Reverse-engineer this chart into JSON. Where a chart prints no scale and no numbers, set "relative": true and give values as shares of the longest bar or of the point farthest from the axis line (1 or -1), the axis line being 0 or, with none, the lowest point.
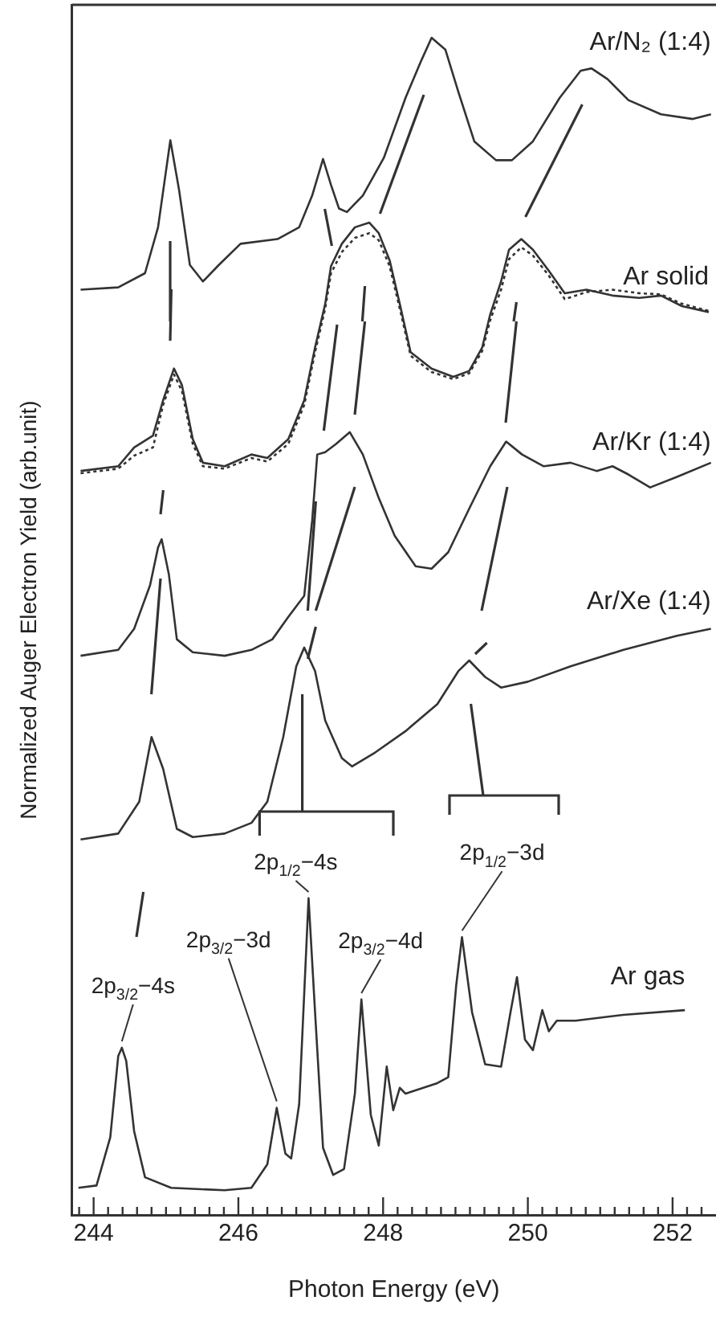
{
  "chart_data": {
    "type": "line",
    "relative": true,
    "xlabel": "Photon Energy (eV)",
    "ylabel": "Normalized Auger Electron Yield (arb.unit)",
    "xlim": [
      243.7,
      252.6
    ],
    "xticks": [
      {
        "value": 243.8,
        "label": null
      },
      244,
      {
        "value": 244.2,
        "label": null
      },
      {
        "value": 244.4,
        "label": null
      },
      {
        "value": 244.6,
        "label": null
      },
      {
        "value": 244.8,
        "label": null
      },
      {
        "value": 245,
        "label": null
      },
      {
        "value": 245.2,
        "label": null
      },
      {
        "value": 245.4,
        "label": null
      },
      {
        "value": 245.6,
        "label": null
      },
      {
        "value": 245.8,
        "label": null
      },
      246,
      {
        "value": 246.2,
        "label": null
      },
      {
        "value": 246.4,
        "label": null
      },
      {
        "value": 246.6,
        "label": null
      },
      {
        "value": 246.8,
        "label": null
      },
      {
        "value": 247,
        "label": null
      },
      {
        "value": 247.2,
        "label": null
      },
      {
        "value": 247.4,
        "label": null
      },
      {
        "value": 247.6,
        "label": null
      },
      {
        "value": 247.8,
        "label": null
      },
      248,
      {
        "value": 248.2,
        "label": null
      },
      {
        "value": 248.4,
        "label": null
      },
      {
        "value": 248.6,
        "label": null
      },
      {
        "value": 248.8,
        "label": null
      },
      {
        "value": 249,
        "label": null
      },
      {
        "value": 249.2,
        "label": null
      },
      {
        "value": 249.4,
        "label": null
      },
      {
        "value": 249.6,
        "label": null
      },
      {
        "value": 249.8,
        "label": null
      },
      250,
      {
        "value": 250.2,
        "label": null
      },
      {
        "value": 250.4,
        "label": null
      },
      {
        "value": 250.6,
        "label": null
      },
      {
        "value": 250.8,
        "label": null
      },
      {
        "value": 251,
        "label": null
      },
      {
        "value": 251.2,
        "label": null
      },
      {
        "value": 251.4,
        "label": null
      },
      {
        "value": 251.6,
        "label": null
      },
      {
        "value": 251.8,
        "label": null
      },
      252,
      {
        "value": 252.2,
        "label": null
      },
      {
        "value": 252.4,
        "label": null
      }
    ],
    "grid": false,
    "legend": false,
    "marker": "none",
    "line_style": "solid",
    "series": [
      {
        "name": "Ar/N₂ (1:4)",
        "color": "#333333",
        "x": [
          243.82,
          244.34,
          244.71,
          244.89,
          245.06,
          245.18,
          245.33,
          245.51,
          245.73,
          246.03,
          246.54,
          246.84,
          247.02,
          247.17,
          247.28,
          247.39,
          247.5,
          247.72,
          248.01,
          248.31,
          248.53,
          248.67,
          248.86,
          249.04,
          249.26,
          249.56,
          249.78,
          250.07,
          250.44,
          250.73,
          250.88,
          251.1,
          251.39,
          251.84,
          252.28,
          252.53
        ],
        "values": [
          0.786,
          0.788,
          0.8,
          0.839,
          0.913,
          0.871,
          0.807,
          0.793,
          0.807,
          0.825,
          0.829,
          0.839,
          0.866,
          0.897,
          0.875,
          0.855,
          0.852,
          0.866,
          0.898,
          0.949,
          0.981,
          1,
          0.99,
          0.954,
          0.912,
          0.896,
          0.896,
          0.912,
          0.949,
          0.972,
          0.974,
          0.965,
          0.947,
          0.935,
          0.931,
          0.935
        ]
      },
      {
        "name": "Ar solid",
        "color": "#333333",
        "x": [
          243.82,
          244.34,
          244.56,
          244.82,
          244.96,
          245.11,
          245.22,
          245.37,
          245.51,
          245.81,
          246.18,
          246.4,
          246.69,
          246.91,
          247.06,
          247.2,
          247.28,
          247.43,
          247.61,
          247.81,
          247.94,
          248.09,
          248.23,
          248.38,
          248.67,
          248.97,
          249.19,
          249.37,
          249.48,
          249.63,
          249.74,
          249.91,
          250.07,
          250.29,
          250.51,
          250.81,
          251.17,
          251.54,
          251.84,
          252.13,
          252.5
        ],
        "values": [
          0.632,
          0.636,
          0.652,
          0.662,
          0.692,
          0.719,
          0.705,
          0.659,
          0.639,
          0.636,
          0.646,
          0.643,
          0.659,
          0.692,
          0.737,
          0.774,
          0.806,
          0.825,
          0.839,
          0.843,
          0.834,
          0.811,
          0.774,
          0.733,
          0.719,
          0.712,
          0.717,
          0.737,
          0.765,
          0.793,
          0.82,
          0.829,
          0.82,
          0.802,
          0.783,
          0.786,
          0.781,
          0.779,
          0.781,
          0.772,
          0.767
        ]
      },
      {
        "color": "#333333",
        "line_style": "dotted",
        "x": [
          243.82,
          244.34,
          244.56,
          244.82,
          244.96,
          245.11,
          245.22,
          245.37,
          245.51,
          245.81,
          246.18,
          246.4,
          246.69,
          246.91,
          247.06,
          247.2,
          247.28,
          247.43,
          247.61,
          247.81,
          247.94,
          248.09,
          248.23,
          248.38,
          248.67,
          248.97,
          249.19,
          249.37,
          249.48,
          249.63,
          249.74,
          249.91,
          250.07,
          250.29,
          250.51,
          250.81,
          251.17,
          251.54,
          251.84,
          252.13,
          252.5
        ],
        "values": [
          0.63,
          0.634,
          0.645,
          0.652,
          0.688,
          0.714,
          0.7,
          0.655,
          0.636,
          0.634,
          0.643,
          0.64,
          0.655,
          0.688,
          0.733,
          0.77,
          0.8,
          0.818,
          0.83,
          0.834,
          0.828,
          0.806,
          0.77,
          0.73,
          0.716,
          0.71,
          0.715,
          0.734,
          0.76,
          0.786,
          0.812,
          0.822,
          0.815,
          0.798,
          0.778,
          0.784,
          0.786,
          0.783,
          0.782,
          0.774,
          0.768
        ]
      },
      {
        "name": "Ar/Kr (1:4)",
        "color": "#333333",
        "x": [
          243.82,
          244.34,
          244.56,
          244.78,
          244.89,
          244.94,
          245.04,
          245.15,
          245.37,
          245.81,
          246.18,
          246.47,
          246.69,
          246.91,
          247.02,
          247.09,
          247.2,
          247.35,
          247.54,
          247.72,
          247.94,
          248.16,
          248.45,
          248.67,
          248.9,
          249.19,
          249.48,
          249.7,
          249.92,
          250.22,
          250.59,
          250.95,
          251.17,
          251.39,
          251.69,
          252.06,
          252.53
        ],
        "values": [
          0.475,
          0.48,
          0.498,
          0.535,
          0.567,
          0.574,
          0.544,
          0.489,
          0.478,
          0.475,
          0.48,
          0.489,
          0.508,
          0.526,
          0.59,
          0.646,
          0.648,
          0.655,
          0.665,
          0.646,
          0.609,
          0.577,
          0.551,
          0.549,
          0.563,
          0.6,
          0.636,
          0.657,
          0.646,
          0.636,
          0.639,
          0.632,
          0.636,
          0.629,
          0.618,
          0.627,
          0.639
        ]
      },
      {
        "name": "Ar/Xe (1:4)",
        "color": "#333333",
        "x": [
          243.82,
          244.34,
          244.63,
          244.8,
          244.96,
          245.15,
          245.37,
          245.81,
          246.18,
          246.4,
          246.62,
          246.8,
          246.91,
          247.06,
          247.2,
          247.43,
          247.57,
          247.87,
          248.31,
          248.75,
          249.04,
          249.19,
          249.41,
          249.63,
          250,
          250.59,
          251.32,
          252.06,
          252.53
        ],
        "values": [
          0.319,
          0.324,
          0.351,
          0.406,
          0.379,
          0.328,
          0.321,
          0.324,
          0.333,
          0.351,
          0.406,
          0.466,
          0.482,
          0.462,
          0.42,
          0.388,
          0.381,
          0.392,
          0.411,
          0.434,
          0.462,
          0.471,
          0.457,
          0.448,
          0.453,
          0.466,
          0.48,
          0.492,
          0.498
        ]
      },
      {
        "name": "Ar gas",
        "color": "#333333",
        "x": [
          243.79,
          244.04,
          244.23,
          244.34,
          244.39,
          244.45,
          244.56,
          244.71,
          245.07,
          245.81,
          246.18,
          246.4,
          246.53,
          246.65,
          246.73,
          246.84,
          246.97,
          247.06,
          247.17,
          247.31,
          247.46,
          247.61,
          247.7,
          247.83,
          247.94,
          248.05,
          248.14,
          248.23,
          248.31,
          248.75,
          248.9,
          249.01,
          249.09,
          249.23,
          249.41,
          249.63,
          249.76,
          249.85,
          249.96,
          250.07,
          250.2,
          250.29,
          250.4,
          250.66,
          251.32,
          252.17
        ],
        "values": [
          0.023,
          0.025,
          0.066,
          0.135,
          0.142,
          0.131,
          0.071,
          0.032,
          0.023,
          0.021,
          0.023,
          0.043,
          0.091,
          0.052,
          0.048,
          0.094,
          0.269,
          0.172,
          0.057,
          0.034,
          0.039,
          0.103,
          0.183,
          0.085,
          0.059,
          0.126,
          0.089,
          0.108,
          0.103,
          0.112,
          0.117,
          0.195,
          0.236,
          0.172,
          0.128,
          0.126,
          0.172,
          0.202,
          0.149,
          0.14,
          0.174,
          0.156,
          0.165,
          0.165,
          0.17,
          0.174
        ]
      }
    ],
    "annotations": [
      {
        "text": "2p$_{3/2}$−4s",
        "x": 244.39,
        "y": 0.142
      },
      {
        "text": "2p$_{3/2}$−3d",
        "x": 246.53,
        "y": 0.091
      },
      {
        "text": "2p$_{1/2}$−4s",
        "x": 246.97,
        "y": 0.269
      },
      {
        "text": "2p$_{3/2}$−4d",
        "x": 247.7,
        "y": 0.183
      },
      {
        "text": "2p$_{1/2}$−3d",
        "x": 249.09,
        "y": 0.236
      }
    ]
  }
}
